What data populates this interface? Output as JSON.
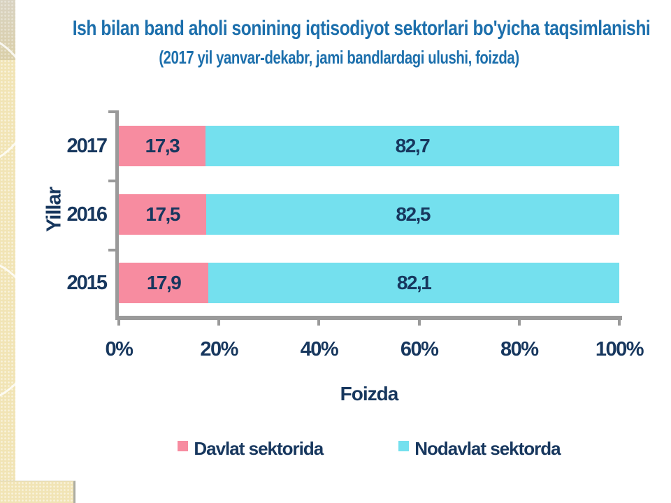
{
  "slide": {
    "title_line1": "Ish bilan band aholi sonining iqtisodiyot sektorlari bo'yicha taqsimlanishi",
    "title_line2": "(2017 yil yanvar-dekabr, jami bandlardagi ulushi, foizda)"
  },
  "chart_data": {
    "type": "bar",
    "orientation": "horizontal",
    "stacked": true,
    "title": "Ish bilan band aholi sonining iqtisodiyot sektorlari bo'yicha taqsimlanishi (2017 yil yanvar-dekabr, jami bandlardagi ulushi, foizda)",
    "categories": [
      "2017",
      "2016",
      "2015"
    ],
    "series": [
      {
        "name": "Davlat sektorida",
        "color": "#F78CA0",
        "values": [
          17.3,
          17.5,
          17.9
        ],
        "value_labels": [
          "17,3",
          "17,5",
          "17,9"
        ]
      },
      {
        "name": "Nodavlat sektorda",
        "color": "#74E0EE",
        "values": [
          82.7,
          82.5,
          82.1
        ],
        "value_labels": [
          "82,7",
          "82,5",
          "82,1"
        ]
      }
    ],
    "xlabel": "Foizda",
    "ylabel": "Yillar",
    "x_ticks": [
      "0%",
      "20%",
      "40%",
      "60%",
      "80%",
      "100%"
    ],
    "xlim": [
      0,
      100
    ],
    "legend_position": "bottom",
    "grid": false
  },
  "colors": {
    "title_text": "#1C6FAC",
    "chart_text": "#17375E",
    "axis": "#9A9A9A",
    "slide_background": "#FFFFFF",
    "edge_pattern": "#F1E4B5"
  }
}
